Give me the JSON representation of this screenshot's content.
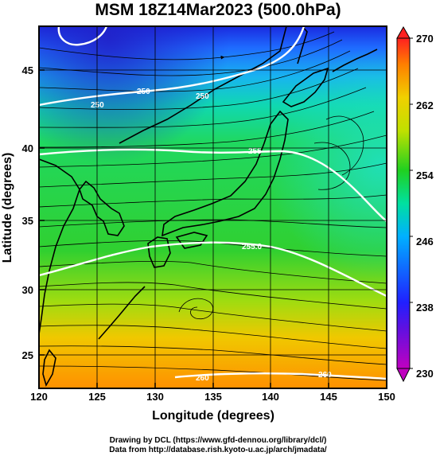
{
  "title": "MSM 18Z14Mar2023 (500.0hPa)",
  "x_axis": {
    "label": "Longitude (degrees)",
    "ticks": [
      "120",
      "125",
      "130",
      "135",
      "140",
      "145",
      "150"
    ]
  },
  "y_axis": {
    "label": "Latitude  (degrees)",
    "ticks": [
      "25",
      "30",
      "35",
      "40",
      "45"
    ]
  },
  "colorbar": {
    "ticks": [
      "230",
      "238",
      "246",
      "254",
      "262",
      "270"
    ],
    "colors": [
      "#c000c0",
      "#2020ff",
      "#00b0ff",
      "#00e0a0",
      "#20d020",
      "#c0e000",
      "#f0d000",
      "#ff8000",
      "#ff2020"
    ]
  },
  "contour_labels": [
    "250",
    "250",
    "250",
    "255",
    "255.0",
    "260",
    "260"
  ],
  "credits": {
    "line1": "Drawing by DCL (https://www.gfd-dennou.org/library/dcl/)",
    "line2": "Data from http://database.rish.kyoto-u.ac.jp/arch/jmadata/"
  },
  "map_data": {
    "field": "temperature (K) with wind streamlines",
    "lon_range": [
      120,
      150
    ],
    "lat_range": [
      23,
      48
    ],
    "value_range": [
      230,
      270
    ],
    "grid": true
  }
}
